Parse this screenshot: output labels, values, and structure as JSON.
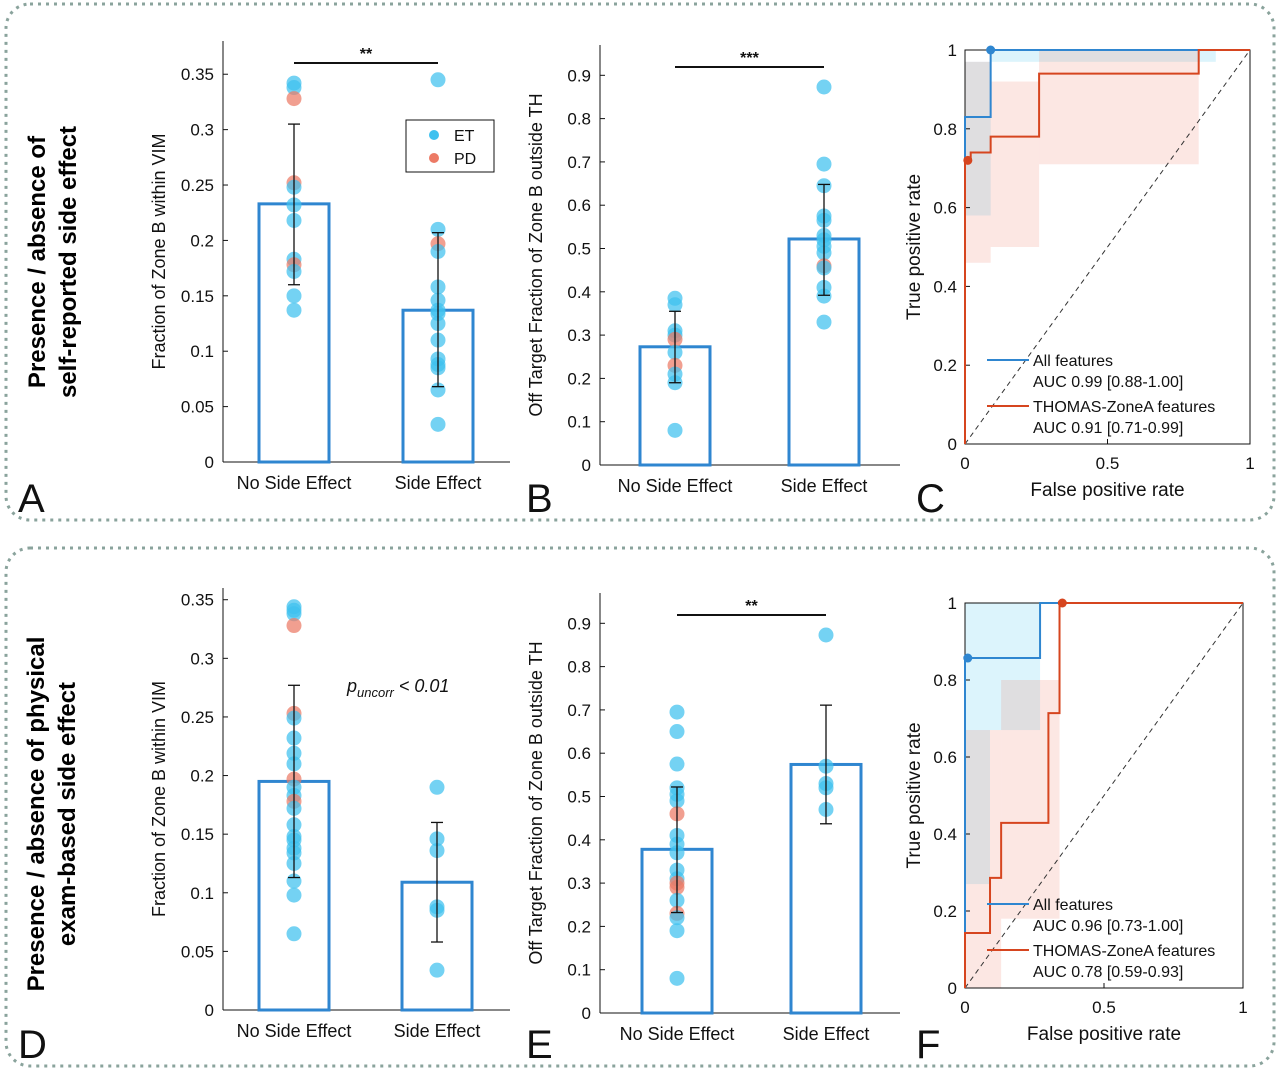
{
  "colors": {
    "bar": "#2f86d0",
    "et": "#3ec1ef",
    "pd": "#ec7a65",
    "roc_all": "#2f86d0",
    "roc_thomas": "#d6451f",
    "frame": "#8aa39c",
    "axis": "#111111"
  },
  "rows": [
    {
      "title_line1": "Presence / absence of",
      "title_line2": "self-reported side effect"
    },
    {
      "title_line1": "Presence / absence of physical",
      "title_line2": "exam-based side effect"
    }
  ],
  "legend": {
    "et": "ET",
    "pd": "PD"
  },
  "chart_data": [
    {
      "panel": "A",
      "type": "bar",
      "ylabel": "Fraction of Zone B within VIM",
      "categories": [
        "No Side Effect",
        "Side Effect"
      ],
      "values": [
        0.233,
        0.137
      ],
      "error": [
        [
          0.16,
          0.305
        ],
        [
          0.068,
          0.207
        ]
      ],
      "ylim": [
        0,
        0.38
      ],
      "yticks": [
        0,
        0.05,
        0.1,
        0.15,
        0.2,
        0.25,
        0.3,
        0.35
      ],
      "ytick_labels": [
        "0",
        "0.05",
        "0.1",
        "0.15",
        "0.2",
        "0.25",
        "0.3",
        "0.35"
      ],
      "significance": "**",
      "legend": [
        "ET",
        "PD"
      ],
      "points": [
        {
          "group": 0,
          "y": 0.342,
          "type": "ET"
        },
        {
          "group": 0,
          "y": 0.338,
          "type": "ET"
        },
        {
          "group": 0,
          "y": 0.328,
          "type": "PD"
        },
        {
          "group": 0,
          "y": 0.252,
          "type": "PD"
        },
        {
          "group": 0,
          "y": 0.248,
          "type": "ET"
        },
        {
          "group": 0,
          "y": 0.232,
          "type": "ET"
        },
        {
          "group": 0,
          "y": 0.218,
          "type": "ET"
        },
        {
          "group": 0,
          "y": 0.183,
          "type": "ET"
        },
        {
          "group": 0,
          "y": 0.178,
          "type": "PD"
        },
        {
          "group": 0,
          "y": 0.172,
          "type": "ET"
        },
        {
          "group": 0,
          "y": 0.15,
          "type": "ET"
        },
        {
          "group": 0,
          "y": 0.137,
          "type": "ET"
        },
        {
          "group": 1,
          "y": 0.345,
          "type": "ET"
        },
        {
          "group": 1,
          "y": 0.21,
          "type": "ET"
        },
        {
          "group": 1,
          "y": 0.197,
          "type": "PD"
        },
        {
          "group": 1,
          "y": 0.19,
          "type": "ET"
        },
        {
          "group": 1,
          "y": 0.158,
          "type": "ET"
        },
        {
          "group": 1,
          "y": 0.146,
          "type": "ET"
        },
        {
          "group": 1,
          "y": 0.137,
          "type": "ET"
        },
        {
          "group": 1,
          "y": 0.134,
          "type": "ET"
        },
        {
          "group": 1,
          "y": 0.125,
          "type": "ET"
        },
        {
          "group": 1,
          "y": 0.11,
          "type": "ET"
        },
        {
          "group": 1,
          "y": 0.093,
          "type": "ET"
        },
        {
          "group": 1,
          "y": 0.088,
          "type": "ET"
        },
        {
          "group": 1,
          "y": 0.085,
          "type": "ET"
        },
        {
          "group": 1,
          "y": 0.065,
          "type": "ET"
        },
        {
          "group": 1,
          "y": 0.034,
          "type": "ET"
        }
      ]
    },
    {
      "panel": "B",
      "type": "bar",
      "ylabel": "Off Target Fraction of Zone B outside TH",
      "categories": [
        "No Side Effect",
        "Side Effect"
      ],
      "values": [
        0.273,
        0.522
      ],
      "error": [
        [
          0.19,
          0.355
        ],
        [
          0.392,
          0.648
        ]
      ],
      "ylim": [
        0,
        0.97
      ],
      "yticks": [
        0,
        0.1,
        0.2,
        0.3,
        0.4,
        0.5,
        0.6,
        0.7,
        0.8,
        0.9
      ],
      "ytick_labels": [
        "0",
        "0.1",
        "0.2",
        "0.3",
        "0.4",
        "0.5",
        "0.6",
        "0.7",
        "0.8",
        "0.9"
      ],
      "significance": "***",
      "points": [
        {
          "group": 0,
          "y": 0.385,
          "type": "ET"
        },
        {
          "group": 0,
          "y": 0.37,
          "type": "ET"
        },
        {
          "group": 0,
          "y": 0.31,
          "type": "ET"
        },
        {
          "group": 0,
          "y": 0.3,
          "type": "ET"
        },
        {
          "group": 0,
          "y": 0.29,
          "type": "PD"
        },
        {
          "group": 0,
          "y": 0.26,
          "type": "ET"
        },
        {
          "group": 0,
          "y": 0.23,
          "type": "PD"
        },
        {
          "group": 0,
          "y": 0.21,
          "type": "ET"
        },
        {
          "group": 0,
          "y": 0.19,
          "type": "ET"
        },
        {
          "group": 0,
          "y": 0.08,
          "type": "ET"
        },
        {
          "group": 1,
          "y": 0.873,
          "type": "ET"
        },
        {
          "group": 1,
          "y": 0.695,
          "type": "ET"
        },
        {
          "group": 1,
          "y": 0.645,
          "type": "ET"
        },
        {
          "group": 1,
          "y": 0.575,
          "type": "ET"
        },
        {
          "group": 1,
          "y": 0.565,
          "type": "ET"
        },
        {
          "group": 1,
          "y": 0.53,
          "type": "ET"
        },
        {
          "group": 1,
          "y": 0.52,
          "type": "ET"
        },
        {
          "group": 1,
          "y": 0.505,
          "type": "ET"
        },
        {
          "group": 1,
          "y": 0.49,
          "type": "ET"
        },
        {
          "group": 1,
          "y": 0.46,
          "type": "PD"
        },
        {
          "group": 1,
          "y": 0.455,
          "type": "ET"
        },
        {
          "group": 1,
          "y": 0.41,
          "type": "ET"
        },
        {
          "group": 1,
          "y": 0.39,
          "type": "ET"
        },
        {
          "group": 1,
          "y": 0.33,
          "type": "ET"
        }
      ]
    },
    {
      "panel": "C",
      "type": "line",
      "xlabel": "False positive rate",
      "ylabel": "True positive rate",
      "xlim": [
        0,
        1
      ],
      "ylim": [
        0,
        1
      ],
      "xticks": [
        0,
        0.5,
        1
      ],
      "xtick_labels": [
        "0",
        "0.5",
        "1"
      ],
      "yticks": [
        0,
        0.2,
        0.4,
        0.6,
        0.8,
        1
      ],
      "ytick_labels": [
        "0",
        "0.2",
        "0.4",
        "0.6",
        "0.8",
        "1"
      ],
      "series": [
        {
          "name": "All features",
          "auc": "AUC 0.99 [0.88-1.00]",
          "x": [
            0,
            0,
            0.09,
            0.09,
            0.85,
            1
          ],
          "y": [
            0,
            0.83,
            0.83,
            1,
            1,
            1
          ],
          "operating_point": [
            0.09,
            1
          ],
          "band": [
            {
              "x0": 0,
              "x1": 0.09,
              "lo": 0.58,
              "hi": 0.97
            },
            {
              "x0": 0.09,
              "x1": 0.88,
              "lo": 0.97,
              "hi": 1
            }
          ]
        },
        {
          "name": "THOMAS-ZoneA features",
          "auc": "AUC 0.91 [0.71-0.99]",
          "x": [
            0,
            0,
            0.02,
            0.02,
            0.09,
            0.09,
            0.26,
            0.26,
            0.82,
            0.82,
            1
          ],
          "y": [
            0,
            0.72,
            0.72,
            0.74,
            0.74,
            0.78,
            0.78,
            0.94,
            0.94,
            1,
            1
          ],
          "operating_point": [
            0.01,
            0.72
          ],
          "band": [
            {
              "x0": 0,
              "x1": 0.09,
              "lo": 0.46,
              "hi": 0.97
            },
            {
              "x0": 0.09,
              "x1": 0.26,
              "lo": 0.5,
              "hi": 0.92
            },
            {
              "x0": 0.26,
              "x1": 0.82,
              "lo": 0.71,
              "hi": 1
            }
          ]
        }
      ],
      "legend_position": "bottom-right"
    },
    {
      "panel": "D",
      "type": "bar",
      "ylabel": "Fraction of Zone B within VIM",
      "categories": [
        "No Side Effect",
        "Side Effect"
      ],
      "values": [
        0.195,
        0.109
      ],
      "error": [
        [
          0.113,
          0.277
        ],
        [
          0.058,
          0.16
        ]
      ],
      "ylim": [
        0,
        0.36
      ],
      "yticks": [
        0,
        0.05,
        0.1,
        0.15,
        0.2,
        0.25,
        0.3,
        0.35
      ],
      "ytick_labels": [
        "0",
        "0.05",
        "0.1",
        "0.15",
        "0.2",
        "0.25",
        "0.3",
        "0.35"
      ],
      "annotation_p": "p",
      "annotation_sub": "uncorr",
      "annotation_rest": " < 0.01",
      "points": [
        {
          "group": 0,
          "y": 0.344,
          "type": "ET"
        },
        {
          "group": 0,
          "y": 0.341,
          "type": "ET"
        },
        {
          "group": 0,
          "y": 0.338,
          "type": "ET"
        },
        {
          "group": 0,
          "y": 0.328,
          "type": "PD"
        },
        {
          "group": 0,
          "y": 0.253,
          "type": "PD"
        },
        {
          "group": 0,
          "y": 0.249,
          "type": "ET"
        },
        {
          "group": 0,
          "y": 0.232,
          "type": "ET"
        },
        {
          "group": 0,
          "y": 0.219,
          "type": "ET"
        },
        {
          "group": 0,
          "y": 0.21,
          "type": "ET"
        },
        {
          "group": 0,
          "y": 0.197,
          "type": "PD"
        },
        {
          "group": 0,
          "y": 0.19,
          "type": "ET"
        },
        {
          "group": 0,
          "y": 0.183,
          "type": "ET"
        },
        {
          "group": 0,
          "y": 0.178,
          "type": "PD"
        },
        {
          "group": 0,
          "y": 0.172,
          "type": "ET"
        },
        {
          "group": 0,
          "y": 0.158,
          "type": "ET"
        },
        {
          "group": 0,
          "y": 0.148,
          "type": "ET"
        },
        {
          "group": 0,
          "y": 0.145,
          "type": "ET"
        },
        {
          "group": 0,
          "y": 0.138,
          "type": "ET"
        },
        {
          "group": 0,
          "y": 0.134,
          "type": "ET"
        },
        {
          "group": 0,
          "y": 0.125,
          "type": "ET"
        },
        {
          "group": 0,
          "y": 0.11,
          "type": "ET"
        },
        {
          "group": 0,
          "y": 0.098,
          "type": "ET"
        },
        {
          "group": 0,
          "y": 0.065,
          "type": "ET"
        },
        {
          "group": 1,
          "y": 0.19,
          "type": "ET"
        },
        {
          "group": 1,
          "y": 0.146,
          "type": "ET"
        },
        {
          "group": 1,
          "y": 0.136,
          "type": "ET"
        },
        {
          "group": 1,
          "y": 0.088,
          "type": "ET"
        },
        {
          "group": 1,
          "y": 0.085,
          "type": "ET"
        },
        {
          "group": 1,
          "y": 0.034,
          "type": "ET"
        }
      ]
    },
    {
      "panel": "E",
      "type": "bar",
      "ylabel": "Off Target Fraction of Zone B outside TH",
      "categories": [
        "No Side Effect",
        "Side Effect"
      ],
      "values": [
        0.378,
        0.574
      ],
      "error": [
        [
          0.232,
          0.522
        ],
        [
          0.437,
          0.711
        ]
      ],
      "ylim": [
        0,
        0.97
      ],
      "yticks": [
        0,
        0.1,
        0.2,
        0.3,
        0.4,
        0.5,
        0.6,
        0.7,
        0.8,
        0.9
      ],
      "ytick_labels": [
        "0",
        "0.1",
        "0.2",
        "0.3",
        "0.4",
        "0.5",
        "0.6",
        "0.7",
        "0.8",
        "0.9"
      ],
      "significance": "**",
      "points": [
        {
          "group": 0,
          "y": 0.695,
          "type": "ET"
        },
        {
          "group": 0,
          "y": 0.65,
          "type": "ET"
        },
        {
          "group": 0,
          "y": 0.575,
          "type": "ET"
        },
        {
          "group": 0,
          "y": 0.52,
          "type": "ET"
        },
        {
          "group": 0,
          "y": 0.505,
          "type": "ET"
        },
        {
          "group": 0,
          "y": 0.49,
          "type": "ET"
        },
        {
          "group": 0,
          "y": 0.46,
          "type": "PD"
        },
        {
          "group": 0,
          "y": 0.41,
          "type": "ET"
        },
        {
          "group": 0,
          "y": 0.39,
          "type": "ET"
        },
        {
          "group": 0,
          "y": 0.37,
          "type": "ET"
        },
        {
          "group": 0,
          "y": 0.33,
          "type": "ET"
        },
        {
          "group": 0,
          "y": 0.31,
          "type": "ET"
        },
        {
          "group": 0,
          "y": 0.3,
          "type": "PD"
        },
        {
          "group": 0,
          "y": 0.29,
          "type": "PD"
        },
        {
          "group": 0,
          "y": 0.26,
          "type": "ET"
        },
        {
          "group": 0,
          "y": 0.23,
          "type": "PD"
        },
        {
          "group": 0,
          "y": 0.22,
          "type": "ET"
        },
        {
          "group": 0,
          "y": 0.19,
          "type": "ET"
        },
        {
          "group": 0,
          "y": 0.08,
          "type": "ET"
        },
        {
          "group": 1,
          "y": 0.873,
          "type": "ET"
        },
        {
          "group": 1,
          "y": 0.57,
          "type": "ET"
        },
        {
          "group": 1,
          "y": 0.53,
          "type": "ET"
        },
        {
          "group": 1,
          "y": 0.52,
          "type": "ET"
        },
        {
          "group": 1,
          "y": 0.47,
          "type": "ET"
        }
      ]
    },
    {
      "panel": "F",
      "type": "line",
      "xlabel": "False positive rate",
      "ylabel": "True positive rate",
      "xlim": [
        0,
        1
      ],
      "ylim": [
        0,
        1
      ],
      "xticks": [
        0,
        0.5,
        1
      ],
      "xtick_labels": [
        "0",
        "0.5",
        "1"
      ],
      "yticks": [
        0,
        0.2,
        0.4,
        0.6,
        0.8,
        1
      ],
      "ytick_labels": [
        "0",
        "0.2",
        "0.4",
        "0.6",
        "0.8",
        "1"
      ],
      "series": [
        {
          "name": "All features",
          "auc": "AUC 0.96 [0.73-1.00]",
          "x": [
            0,
            0,
            0.27,
            0.27,
            1
          ],
          "y": [
            0,
            0.857,
            0.857,
            1,
            1
          ],
          "operating_point": [
            0.01,
            0.857
          ],
          "band": [
            {
              "x0": 0,
              "x1": 0.09,
              "lo": 0.27,
              "hi": 1
            },
            {
              "x0": 0.09,
              "x1": 0.27,
              "lo": 0.67,
              "hi": 1
            }
          ]
        },
        {
          "name": "THOMAS-ZoneA features",
          "auc": "AUC 0.78 [0.59-0.93]",
          "x": [
            0,
            0,
            0.09,
            0.09,
            0.13,
            0.13,
            0.3,
            0.3,
            0.34,
            0.34,
            1
          ],
          "y": [
            0,
            0.143,
            0.143,
            0.286,
            0.286,
            0.429,
            0.429,
            0.714,
            0.714,
            1,
            1
          ],
          "operating_point": [
            0.35,
            1
          ],
          "band": [
            {
              "x0": 0,
              "x1": 0.13,
              "lo": 0,
              "hi": 0.67
            },
            {
              "x0": 0.13,
              "x1": 0.34,
              "lo": 0.18,
              "hi": 0.8
            }
          ]
        }
      ],
      "legend_position": "bottom-right"
    }
  ]
}
